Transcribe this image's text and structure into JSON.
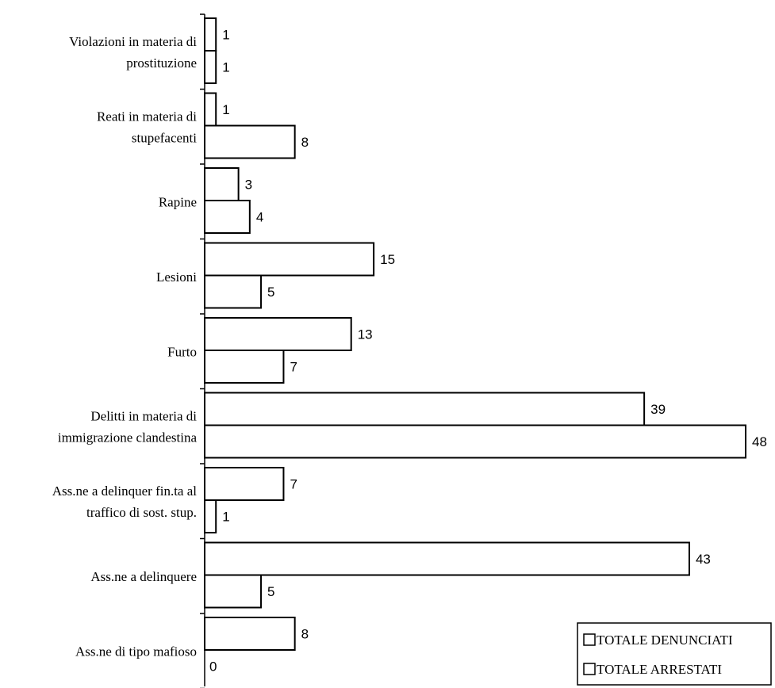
{
  "chart_data": {
    "type": "bar",
    "orientation": "horizontal",
    "categories": [
      [
        "Violazioni in materia di",
        "prostituzione"
      ],
      [
        "Reati in materia di",
        "stupefacenti"
      ],
      [
        "Rapine"
      ],
      [
        "Lesioni"
      ],
      [
        "Furto"
      ],
      [
        "Delitti in materia di",
        "immigrazione clandestina"
      ],
      [
        "Ass.ne a delinquer fin.ta al",
        "traffico di sost. stup."
      ],
      [
        "Ass.ne a delinquere"
      ],
      [
        "Ass.ne di tipo mafioso"
      ]
    ],
    "series": [
      {
        "name": "TOTALE DENUNCIATI",
        "values": [
          1,
          1,
          3,
          15,
          13,
          39,
          7,
          43,
          8
        ]
      },
      {
        "name": "TOTALE ARRESTATI",
        "values": [
          1,
          8,
          4,
          5,
          7,
          48,
          1,
          5,
          0
        ]
      }
    ],
    "xlim": [
      0,
      48
    ],
    "grid": false,
    "legend_position": "bottom-right",
    "colors": {
      "bar_fill": "#ffffff",
      "bar_stroke": "#000000"
    }
  }
}
